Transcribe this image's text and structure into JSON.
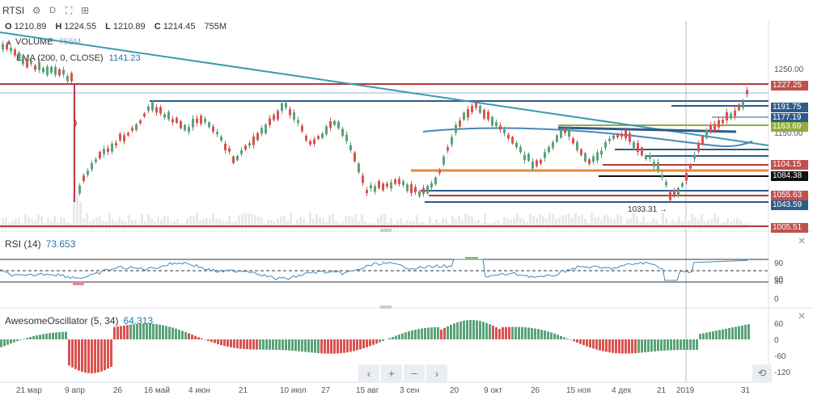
{
  "toolbar": {
    "symbol": "RTSI",
    "settings_icon": "gear-icon",
    "interval": "D",
    "fullscreen_icon": "expand-icon",
    "compare_icon": "add-compare-icon"
  },
  "ohlc": {
    "o_label": "O",
    "o": "1210.89",
    "h_label": "H",
    "h": "1224.55",
    "l_label": "L",
    "l": "1210.89",
    "c_label": "C",
    "c": "1214.45",
    "vol": "755M"
  },
  "legend": {
    "volume_label": "VOLUME",
    "volume_value": "755M",
    "ema_label": "EMA (200, 0, CLOSE)",
    "ema_value": "1141.23",
    "collapse_icon": "arrow-up-icon"
  },
  "price_axis": {
    "ticks": [
      "1250.00",
      "1150.00"
    ],
    "tags": [
      {
        "text": "1227.25",
        "color": "#c0504d"
      },
      {
        "text": "1191.75",
        "color": "#2e5c8a"
      },
      {
        "text": "1177.19",
        "color": "#2e5c8a"
      },
      {
        "text": "1163.69",
        "color": "#8fae3b"
      },
      {
        "text": "1104.15",
        "color": "#c0504d"
      },
      {
        "text": "1084.38",
        "color": "#111111"
      },
      {
        "text": "1055.63",
        "color": "#c0504d"
      },
      {
        "text": "1043.59",
        "color": "#2e5c8a"
      },
      {
        "text": "1005.51",
        "color": "#c0504d"
      }
    ],
    "low_annotation": "1033.31 →"
  },
  "rsi": {
    "title": "RSI (14)",
    "value": "73.653",
    "ticks": [
      "90",
      "60",
      "30",
      "0"
    ],
    "close_icon": "close-icon"
  },
  "ao": {
    "title": "AwesomeOscillator (5, 34)",
    "value": "64.313",
    "ticks": [
      "60",
      "0",
      "-60",
      "-120"
    ],
    "close_icon": "close-icon"
  },
  "x_axis": {
    "labels": [
      "21 мар",
      "9 апр",
      "26",
      "16 май",
      "4 июн",
      "21",
      "10 июл",
      "27",
      "15 авг",
      "3 сен",
      "20",
      "9 окт",
      "26",
      "15 ноя",
      "4 дек",
      "21",
      "2019",
      "31"
    ]
  },
  "nav": {
    "left": "‹",
    "zoom_in": "+",
    "zoom_out": "−",
    "right": "›",
    "reset": "⟲"
  },
  "colors": {
    "up": "#5aa37a",
    "down": "#d9534f",
    "ema": "#4a86b5",
    "trend": "#3a9ab0"
  }
}
